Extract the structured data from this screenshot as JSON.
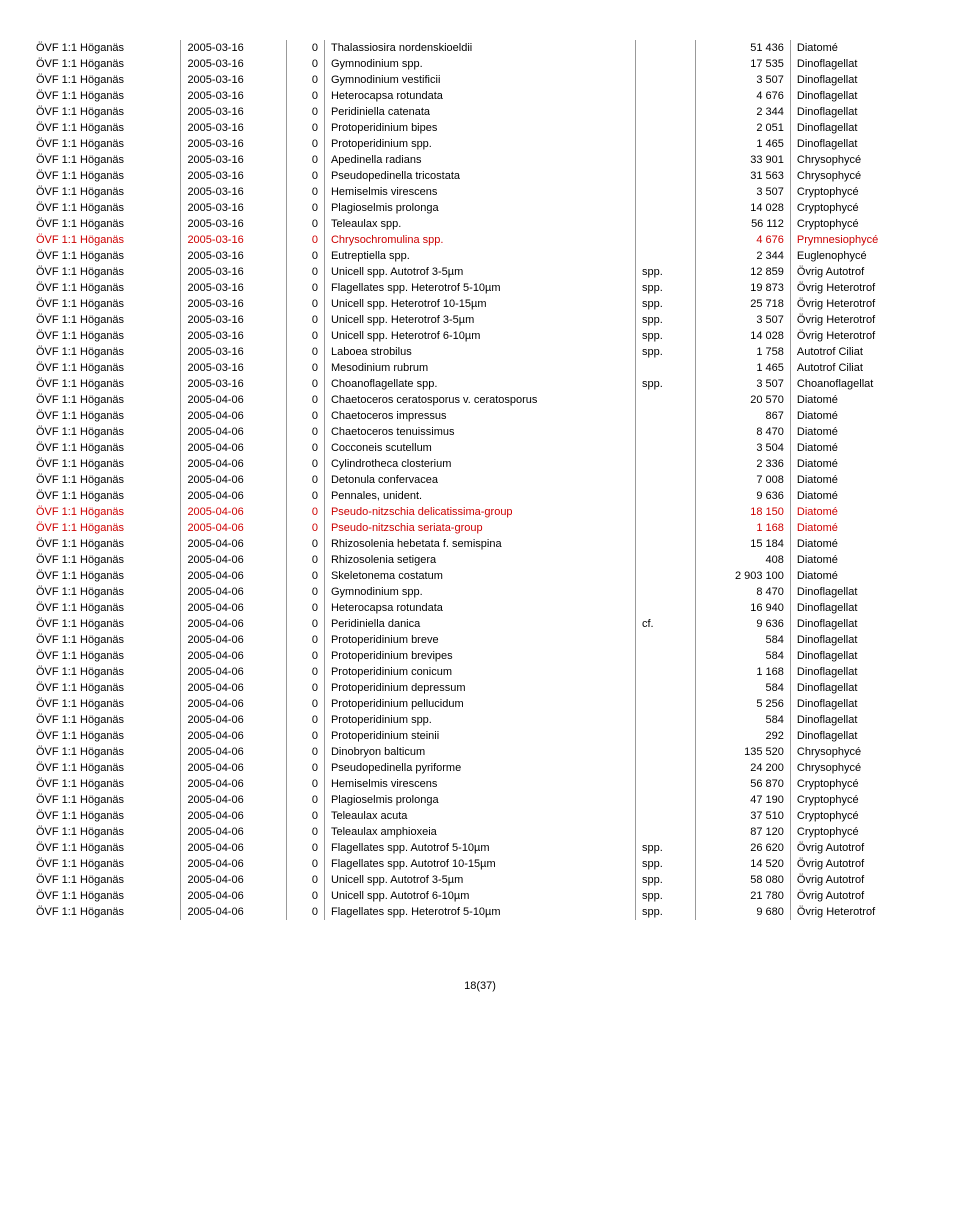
{
  "footer": "18(37)",
  "rows": [
    {
      "c0": "ÖVF 1:1 Höganäs",
      "c1": "2005-03-16",
      "c2": "0",
      "c3": "Thalassiosira nordenskioeldii",
      "c4": "",
      "c5": "51 436",
      "c6": "Diatomé",
      "red": false
    },
    {
      "c0": "ÖVF 1:1 Höganäs",
      "c1": "2005-03-16",
      "c2": "0",
      "c3": "Gymnodinium spp.",
      "c4": "",
      "c5": "17 535",
      "c6": "Dinoflagellat",
      "red": false
    },
    {
      "c0": "ÖVF 1:1 Höganäs",
      "c1": "2005-03-16",
      "c2": "0",
      "c3": "Gymnodinium vestificii",
      "c4": "",
      "c5": "3 507",
      "c6": "Dinoflagellat",
      "red": false
    },
    {
      "c0": "ÖVF 1:1 Höganäs",
      "c1": "2005-03-16",
      "c2": "0",
      "c3": "Heterocapsa rotundata",
      "c4": "",
      "c5": "4 676",
      "c6": "Dinoflagellat",
      "red": false
    },
    {
      "c0": "ÖVF 1:1 Höganäs",
      "c1": "2005-03-16",
      "c2": "0",
      "c3": "Peridiniella catenata",
      "c4": "",
      "c5": "2 344",
      "c6": "Dinoflagellat",
      "red": false
    },
    {
      "c0": "ÖVF 1:1 Höganäs",
      "c1": "2005-03-16",
      "c2": "0",
      "c3": "Protoperidinium bipes",
      "c4": "",
      "c5": "2 051",
      "c6": "Dinoflagellat",
      "red": false
    },
    {
      "c0": "ÖVF 1:1 Höganäs",
      "c1": "2005-03-16",
      "c2": "0",
      "c3": "Protoperidinium spp.",
      "c4": "",
      "c5": "1 465",
      "c6": "Dinoflagellat",
      "red": false
    },
    {
      "c0": "ÖVF 1:1 Höganäs",
      "c1": "2005-03-16",
      "c2": "0",
      "c3": "Apedinella radians",
      "c4": "",
      "c5": "33 901",
      "c6": "Chrysophycé",
      "red": false
    },
    {
      "c0": "ÖVF 1:1 Höganäs",
      "c1": "2005-03-16",
      "c2": "0",
      "c3": "Pseudopedinella tricostata",
      "c4": "",
      "c5": "31 563",
      "c6": "Chrysophycé",
      "red": false
    },
    {
      "c0": "ÖVF 1:1 Höganäs",
      "c1": "2005-03-16",
      "c2": "0",
      "c3": "Hemiselmis virescens",
      "c4": "",
      "c5": "3 507",
      "c6": "Cryptophycé",
      "red": false
    },
    {
      "c0": "ÖVF 1:1 Höganäs",
      "c1": "2005-03-16",
      "c2": "0",
      "c3": "Plagioselmis prolonga",
      "c4": "",
      "c5": "14 028",
      "c6": "Cryptophycé",
      "red": false
    },
    {
      "c0": "ÖVF 1:1 Höganäs",
      "c1": "2005-03-16",
      "c2": "0",
      "c3": "Teleaulax spp.",
      "c4": "",
      "c5": "56 112",
      "c6": "Cryptophycé",
      "red": false
    },
    {
      "c0": "ÖVF 1:1 Höganäs",
      "c1": "2005-03-16",
      "c2": "0",
      "c3": "Chrysochromulina spp.",
      "c4": "",
      "c5": "4 676",
      "c6": "Prymnesiophycé",
      "red": true
    },
    {
      "c0": "ÖVF 1:1 Höganäs",
      "c1": "2005-03-16",
      "c2": "0",
      "c3": "Eutreptiella spp.",
      "c4": "",
      "c5": "2 344",
      "c6": "Euglenophycé",
      "red": false
    },
    {
      "c0": "ÖVF 1:1 Höganäs",
      "c1": "2005-03-16",
      "c2": "0",
      "c3": "Unicell spp. Autotrof 3-5µm",
      "c4": "spp.",
      "c5": "12 859",
      "c6": "Övrig Autotrof",
      "red": false
    },
    {
      "c0": "ÖVF 1:1 Höganäs",
      "c1": "2005-03-16",
      "c2": "0",
      "c3": "Flagellates spp. Heterotrof  5-10µm",
      "c4": "spp.",
      "c5": "19 873",
      "c6": "Övrig Heterotrof",
      "red": false
    },
    {
      "c0": "ÖVF 1:1 Höganäs",
      "c1": "2005-03-16",
      "c2": "0",
      "c3": "Unicell spp. Heterotrof 10-15µm",
      "c4": "spp.",
      "c5": "25 718",
      "c6": "Övrig Heterotrof",
      "red": false
    },
    {
      "c0": "ÖVF 1:1 Höganäs",
      "c1": "2005-03-16",
      "c2": "0",
      "c3": "Unicell spp. Heterotrof 3-5µm",
      "c4": "spp.",
      "c5": "3 507",
      "c6": "Övrig Heterotrof",
      "red": false
    },
    {
      "c0": "ÖVF 1:1 Höganäs",
      "c1": "2005-03-16",
      "c2": "0",
      "c3": "Unicell spp. Heterotrof 6-10µm",
      "c4": "spp.",
      "c5": "14 028",
      "c6": "Övrig Heterotrof",
      "red": false
    },
    {
      "c0": "ÖVF 1:1 Höganäs",
      "c1": "2005-03-16",
      "c2": "0",
      "c3": "Laboea strobilus",
      "c4": "spp.",
      "c5": "1 758",
      "c6": "Autotrof Ciliat",
      "red": false
    },
    {
      "c0": "ÖVF 1:1 Höganäs",
      "c1": "2005-03-16",
      "c2": "0",
      "c3": "Mesodinium rubrum",
      "c4": "",
      "c5": "1 465",
      "c6": "Autotrof Ciliat",
      "red": false
    },
    {
      "c0": "ÖVF 1:1 Höganäs",
      "c1": "2005-03-16",
      "c2": "0",
      "c3": "Choanoflagellate spp.",
      "c4": "spp.",
      "c5": "3 507",
      "c6": "Choanoflagellat",
      "red": false
    },
    {
      "c0": "ÖVF 1:1 Höganäs",
      "c1": "2005-04-06",
      "c2": "0",
      "c3": "Chaetoceros ceratosporus v. ceratosporus",
      "c4": "",
      "c5": "20 570",
      "c6": "Diatomé",
      "red": false
    },
    {
      "c0": "ÖVF 1:1 Höganäs",
      "c1": "2005-04-06",
      "c2": "0",
      "c3": "Chaetoceros impressus",
      "c4": "",
      "c5": "867",
      "c6": "Diatomé",
      "red": false
    },
    {
      "c0": "ÖVF 1:1 Höganäs",
      "c1": "2005-04-06",
      "c2": "0",
      "c3": "Chaetoceros tenuissimus",
      "c4": "",
      "c5": "8 470",
      "c6": "Diatomé",
      "red": false
    },
    {
      "c0": "ÖVF 1:1 Höganäs",
      "c1": "2005-04-06",
      "c2": "0",
      "c3": "Cocconeis scutellum",
      "c4": "",
      "c5": "3 504",
      "c6": "Diatomé",
      "red": false
    },
    {
      "c0": "ÖVF 1:1 Höganäs",
      "c1": "2005-04-06",
      "c2": "0",
      "c3": "Cylindrotheca closterium",
      "c4": "",
      "c5": "2 336",
      "c6": "Diatomé",
      "red": false
    },
    {
      "c0": "ÖVF 1:1 Höganäs",
      "c1": "2005-04-06",
      "c2": "0",
      "c3": "Detonula confervacea",
      "c4": "",
      "c5": "7 008",
      "c6": "Diatomé",
      "red": false
    },
    {
      "c0": "ÖVF 1:1 Höganäs",
      "c1": "2005-04-06",
      "c2": "0",
      "c3": "Pennales, unident.",
      "c4": "",
      "c5": "9 636",
      "c6": "Diatomé",
      "red": false
    },
    {
      "c0": "ÖVF 1:1 Höganäs",
      "c1": "2005-04-06",
      "c2": "0",
      "c3": "Pseudo-nitzschia delicatissima-group",
      "c4": "",
      "c5": "18 150",
      "c6": "Diatomé",
      "red": true
    },
    {
      "c0": "ÖVF 1:1 Höganäs",
      "c1": "2005-04-06",
      "c2": "0",
      "c3": "Pseudo-nitzschia seriata-group",
      "c4": "",
      "c5": "1 168",
      "c6": "Diatomé",
      "red": true
    },
    {
      "c0": "ÖVF 1:1 Höganäs",
      "c1": "2005-04-06",
      "c2": "0",
      "c3": "Rhizosolenia hebetata f. semispina",
      "c4": "",
      "c5": "15 184",
      "c6": "Diatomé",
      "red": false
    },
    {
      "c0": "ÖVF 1:1 Höganäs",
      "c1": "2005-04-06",
      "c2": "0",
      "c3": "Rhizosolenia setigera",
      "c4": "",
      "c5": "408",
      "c6": "Diatomé",
      "red": false
    },
    {
      "c0": "ÖVF 1:1 Höganäs",
      "c1": "2005-04-06",
      "c2": "0",
      "c3": "Skeletonema costatum",
      "c4": "",
      "c5": "2 903 100",
      "c6": "Diatomé",
      "red": false
    },
    {
      "c0": "ÖVF 1:1 Höganäs",
      "c1": "2005-04-06",
      "c2": "0",
      "c3": "Gymnodinium spp.",
      "c4": "",
      "c5": "8 470",
      "c6": "Dinoflagellat",
      "red": false
    },
    {
      "c0": "ÖVF 1:1 Höganäs",
      "c1": "2005-04-06",
      "c2": "0",
      "c3": "Heterocapsa rotundata",
      "c4": "",
      "c5": "16 940",
      "c6": "Dinoflagellat",
      "red": false
    },
    {
      "c0": "ÖVF 1:1 Höganäs",
      "c1": "2005-04-06",
      "c2": "0",
      "c3": "Peridiniella danica",
      "c4": "cf.",
      "c5": "9 636",
      "c6": "Dinoflagellat",
      "red": false
    },
    {
      "c0": "ÖVF 1:1 Höganäs",
      "c1": "2005-04-06",
      "c2": "0",
      "c3": "Protoperidinium breve",
      "c4": "",
      "c5": "584",
      "c6": "Dinoflagellat",
      "red": false
    },
    {
      "c0": "ÖVF 1:1 Höganäs",
      "c1": "2005-04-06",
      "c2": "0",
      "c3": "Protoperidinium brevipes",
      "c4": "",
      "c5": "584",
      "c6": "Dinoflagellat",
      "red": false
    },
    {
      "c0": "ÖVF 1:1 Höganäs",
      "c1": "2005-04-06",
      "c2": "0",
      "c3": "Protoperidinium conicum",
      "c4": "",
      "c5": "1 168",
      "c6": "Dinoflagellat",
      "red": false
    },
    {
      "c0": "ÖVF 1:1 Höganäs",
      "c1": "2005-04-06",
      "c2": "0",
      "c3": "Protoperidinium depressum",
      "c4": "",
      "c5": "584",
      "c6": "Dinoflagellat",
      "red": false
    },
    {
      "c0": "ÖVF 1:1 Höganäs",
      "c1": "2005-04-06",
      "c2": "0",
      "c3": "Protoperidinium pellucidum",
      "c4": "",
      "c5": "5 256",
      "c6": "Dinoflagellat",
      "red": false
    },
    {
      "c0": "ÖVF 1:1 Höganäs",
      "c1": "2005-04-06",
      "c2": "0",
      "c3": "Protoperidinium spp.",
      "c4": "",
      "c5": "584",
      "c6": "Dinoflagellat",
      "red": false
    },
    {
      "c0": "ÖVF 1:1 Höganäs",
      "c1": "2005-04-06",
      "c2": "0",
      "c3": "Protoperidinium steinii",
      "c4": "",
      "c5": "292",
      "c6": "Dinoflagellat",
      "red": false
    },
    {
      "c0": "ÖVF 1:1 Höganäs",
      "c1": "2005-04-06",
      "c2": "0",
      "c3": "Dinobryon balticum",
      "c4": "",
      "c5": "135 520",
      "c6": "Chrysophycé",
      "red": false
    },
    {
      "c0": "ÖVF 1:1 Höganäs",
      "c1": "2005-04-06",
      "c2": "0",
      "c3": "Pseudopedinella pyriforme",
      "c4": "",
      "c5": "24 200",
      "c6": "Chrysophycé",
      "red": false
    },
    {
      "c0": "ÖVF 1:1 Höganäs",
      "c1": "2005-04-06",
      "c2": "0",
      "c3": "Hemiselmis virescens",
      "c4": "",
      "c5": "56 870",
      "c6": "Cryptophycé",
      "red": false
    },
    {
      "c0": "ÖVF 1:1 Höganäs",
      "c1": "2005-04-06",
      "c2": "0",
      "c3": "Plagioselmis prolonga",
      "c4": "",
      "c5": "47 190",
      "c6": "Cryptophycé",
      "red": false
    },
    {
      "c0": "ÖVF 1:1 Höganäs",
      "c1": "2005-04-06",
      "c2": "0",
      "c3": "Teleaulax acuta",
      "c4": "",
      "c5": "37 510",
      "c6": "Cryptophycé",
      "red": false
    },
    {
      "c0": "ÖVF 1:1 Höganäs",
      "c1": "2005-04-06",
      "c2": "0",
      "c3": "Teleaulax amphioxeia",
      "c4": "",
      "c5": "87 120",
      "c6": "Cryptophycé",
      "red": false
    },
    {
      "c0": "ÖVF 1:1 Höganäs",
      "c1": "2005-04-06",
      "c2": "0",
      "c3": "Flagellates spp. Autotrof  5-10µm",
      "c4": "spp.",
      "c5": "26 620",
      "c6": "Övrig Autotrof",
      "red": false
    },
    {
      "c0": "ÖVF 1:1 Höganäs",
      "c1": "2005-04-06",
      "c2": "0",
      "c3": "Flagellates spp. Autotrof 10-15µm",
      "c4": "spp.",
      "c5": "14 520",
      "c6": "Övrig Autotrof",
      "red": false
    },
    {
      "c0": "ÖVF 1:1 Höganäs",
      "c1": "2005-04-06",
      "c2": "0",
      "c3": "Unicell spp. Autotrof 3-5µm",
      "c4": "spp.",
      "c5": "58 080",
      "c6": "Övrig Autotrof",
      "red": false
    },
    {
      "c0": "ÖVF 1:1 Höganäs",
      "c1": "2005-04-06",
      "c2": "0",
      "c3": "Unicell spp. Autotrof 6-10µm",
      "c4": "spp.",
      "c5": "21 780",
      "c6": "Övrig Autotrof",
      "red": false
    },
    {
      "c0": "ÖVF 1:1 Höganäs",
      "c1": "2005-04-06",
      "c2": "0",
      "c3": "Flagellates spp. Heterotrof  5-10µm",
      "c4": "spp.",
      "c5": "9 680",
      "c6": "Övrig Heterotrof",
      "red": false
    }
  ]
}
